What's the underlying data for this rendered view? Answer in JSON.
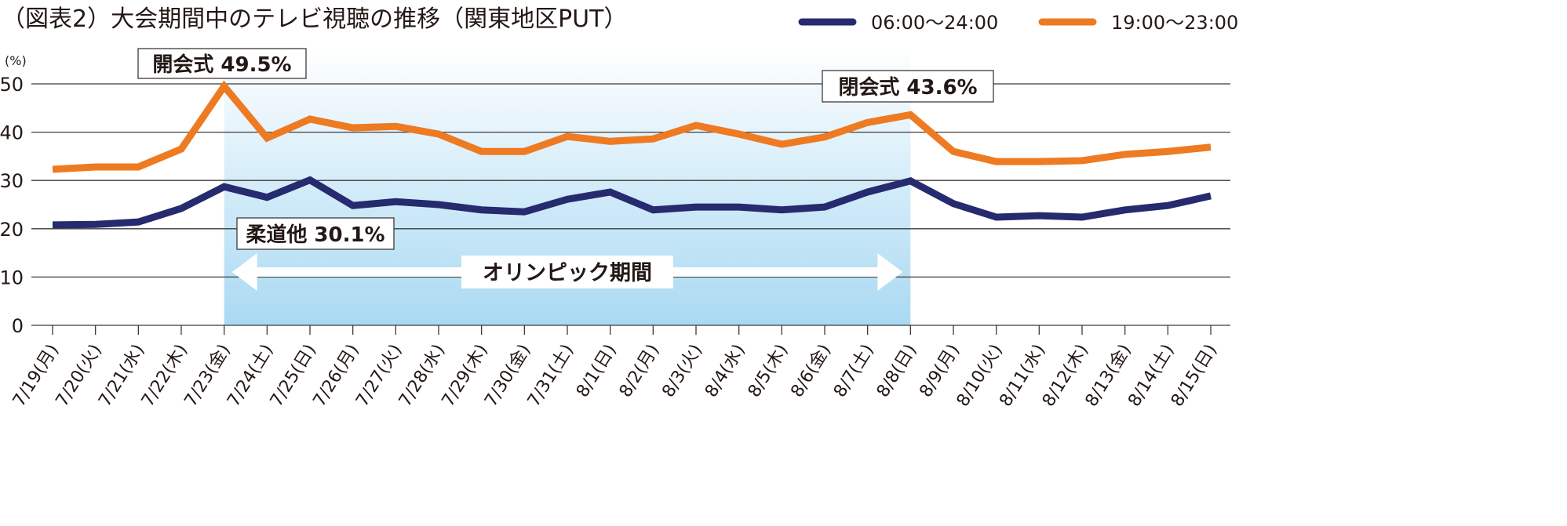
{
  "chart_data": {
    "type": "line",
    "title": "（図表2）大会期間中のテレビ視聴の推移（関東地区PUT）",
    "ylabel": "(%)",
    "ylim": [
      0,
      50
    ],
    "yticks": [
      0,
      10,
      20,
      30,
      40,
      50
    ],
    "grid": true,
    "legend_position": "top-right",
    "categories": [
      "7/19(月)",
      "7/20(火)",
      "7/21(水)",
      "7/22(木)",
      "7/23(金)",
      "7/24(土)",
      "7/25(日)",
      "7/26(月)",
      "7/27(火)",
      "7/28(水)",
      "7/29(木)",
      "7/30(金)",
      "7/31(土)",
      "8/1(日)",
      "8/2(月)",
      "8/3(火)",
      "8/4(水)",
      "8/5(木)",
      "8/6(金)",
      "8/7(土)",
      "8/8(日)",
      "8/9(月)",
      "8/10(火)",
      "8/11(水)",
      "8/12(木)",
      "8/13(金)",
      "8/14(土)",
      "8/15(日)"
    ],
    "series": [
      {
        "name": "06:00～24:00",
        "color": "#262a6e",
        "values": [
          20.8,
          20.9,
          21.4,
          24.2,
          28.7,
          26.5,
          30.1,
          24.8,
          25.6,
          25.0,
          23.9,
          23.5,
          26.1,
          27.6,
          23.9,
          24.5,
          24.5,
          23.9,
          24.5,
          27.6,
          29.9,
          25.2,
          22.4,
          22.7,
          22.4,
          23.9,
          24.8,
          26.8
        ]
      },
      {
        "name": "19:00～23:00",
        "color": "#ee7a22",
        "values": [
          32.3,
          32.8,
          32.8,
          36.5,
          49.5,
          38.8,
          42.7,
          40.9,
          41.2,
          39.6,
          36.0,
          36.0,
          39.1,
          38.1,
          38.6,
          41.4,
          39.6,
          37.5,
          39.0,
          42.0,
          43.6,
          36.0,
          33.9,
          33.9,
          34.1,
          35.4,
          36.0,
          36.9
        ]
      }
    ],
    "shaded_period": {
      "from": "7/23(金)",
      "to": "8/8(日)",
      "label": "オリンピック期間",
      "color": "#a9d9f3"
    },
    "annotations": [
      {
        "text": "開会式 49.5%",
        "at": "7/23(金)"
      },
      {
        "text": "閉会式 43.6%",
        "at": "8/8(日)"
      },
      {
        "text": "柔道他 30.1%",
        "at": "7/25(日)"
      }
    ]
  }
}
